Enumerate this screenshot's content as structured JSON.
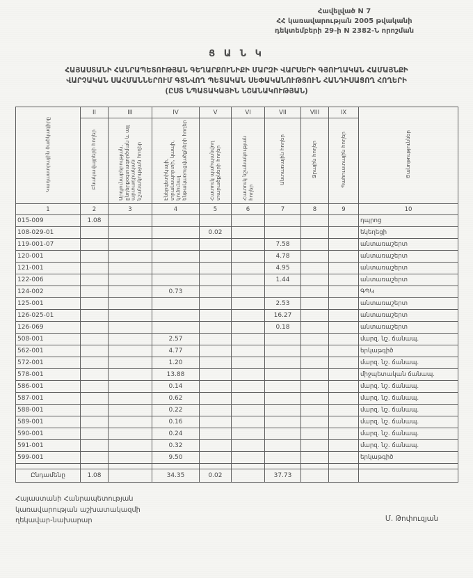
{
  "annex": {
    "line1": "Հավելված N 7",
    "line2": "ՀՀ կառավարության 2005 թվականի",
    "line3": "դեկտեմբերի 29-ի N 2382-Ն որոշման"
  },
  "title": {
    "heading": "Ց Ա Ն Կ",
    "line1": "ՀԱՅԱՍՏԱՆԻ ՀԱՆՐԱՊԵՏՈՒԹՅԱՆ ԳԵՂԱՐՔՈՒՆԻՔԻ ՄԱՐԶԻ ՎԱՐՍԵՐԻ ԳՅՈՒՂԱԿԱՆ ՀԱՄԱՅՆՔԻ",
    "line2": "ՎԱՐՉԱԿԱՆ ՍԱՀՄԱՆՆԵՐՈՒՄ ԳՏՆՎՈՂ ՊԵՏԱԿԱՆ ՍԵՓԱԿԱՆՈՒԹՅՈՒՆ ՀԱՆԴԻՍԱՑՈՂ ՀՈՂԵՐԻ",
    "line3": "(ԸՍՏ ՆՊԱՏԱԿԱՅԻՆ ՆՇԱՆԱԿՈՒԹՅԱՆ)"
  },
  "table": {
    "columns": [
      {
        "num": "1",
        "roman": "",
        "label": "Կադաստրային ծածկագիրը"
      },
      {
        "num": "2",
        "roman": "II",
        "label": "Բնակավայրերի հողեր"
      },
      {
        "num": "3",
        "roman": "III",
        "label": "Արդյունաբերության, ընդերքօգտագործման և այլ արտադրական նշանակության հողեր"
      },
      {
        "num": "4",
        "roman": "IV",
        "label": "Էներգետիկայի, տրանսպորտի, կապի, կոմունալ ենթակառուցվածքների հողեր"
      },
      {
        "num": "5",
        "roman": "V",
        "label": "Հատուկ պահպանվող տարածքների հողեր"
      },
      {
        "num": "6",
        "roman": "VI",
        "label": "Հատուկ նշանակության հողեր"
      },
      {
        "num": "7",
        "roman": "VII",
        "label": "Անտառային հողեր"
      },
      {
        "num": "8",
        "roman": "VIII",
        "label": "Ջրային հողեր"
      },
      {
        "num": "9",
        "roman": "IX",
        "label": "Պահուստային հողեր"
      },
      {
        "num": "10",
        "roman": "",
        "label": "Ծանոթություններ"
      }
    ],
    "rows": [
      {
        "code": "015-009",
        "v": [
          "1.08",
          "",
          "",
          "",
          "",
          "",
          "",
          ""
        ],
        "note": "դպրոց"
      },
      {
        "code": "108-029-01",
        "v": [
          "",
          "",
          "",
          "0.02",
          "",
          "",
          "",
          ""
        ],
        "note": "եկեղեցի"
      },
      {
        "code": "119-001-07",
        "v": [
          "",
          "",
          "",
          "",
          "",
          "7.58",
          "",
          ""
        ],
        "note": "անտառաշերտ"
      },
      {
        "code": "120-001",
        "v": [
          "",
          "",
          "",
          "",
          "",
          "4.78",
          "",
          ""
        ],
        "note": "անտառաշերտ"
      },
      {
        "code": "121-001",
        "v": [
          "",
          "",
          "",
          "",
          "",
          "4.95",
          "",
          ""
        ],
        "note": "անտառաշերտ"
      },
      {
        "code": "122-006",
        "v": [
          "",
          "",
          "",
          "",
          "",
          "1.44",
          "",
          ""
        ],
        "note": "անտառաշերտ"
      },
      {
        "code": "124-002",
        "v": [
          "",
          "",
          "0.73",
          "",
          "",
          "",
          "",
          ""
        ],
        "note": "ԳՊԿ"
      },
      {
        "code": "125-001",
        "v": [
          "",
          "",
          "",
          "",
          "",
          "2.53",
          "",
          ""
        ],
        "note": "անտառաշերտ"
      },
      {
        "code": "126-025-01",
        "v": [
          "",
          "",
          "",
          "",
          "",
          "16.27",
          "",
          ""
        ],
        "note": "անտառաշերտ"
      },
      {
        "code": "126-069",
        "v": [
          "",
          "",
          "",
          "",
          "",
          "0.18",
          "",
          ""
        ],
        "note": "անտառաշերտ"
      },
      {
        "code": "508-001",
        "v": [
          "",
          "",
          "2.57",
          "",
          "",
          "",
          "",
          ""
        ],
        "note": "մարզ. նշ. ճանապ."
      },
      {
        "code": "562-001",
        "v": [
          "",
          "",
          "4.77",
          "",
          "",
          "",
          "",
          ""
        ],
        "note": "երկաթգիծ"
      },
      {
        "code": "572-001",
        "v": [
          "",
          "",
          "1.20",
          "",
          "",
          "",
          "",
          ""
        ],
        "note": "մարզ. նշ. ճանապ."
      },
      {
        "code": "578-001",
        "v": [
          "",
          "",
          "13.88",
          "",
          "",
          "",
          "",
          ""
        ],
        "note": "միջպետական ճանապ."
      },
      {
        "code": "586-001",
        "v": [
          "",
          "",
          "0.14",
          "",
          "",
          "",
          "",
          ""
        ],
        "note": "մարզ. նշ. ճանապ."
      },
      {
        "code": "587-001",
        "v": [
          "",
          "",
          "0.62",
          "",
          "",
          "",
          "",
          ""
        ],
        "note": "մարզ. նշ. ճանապ."
      },
      {
        "code": "588-001",
        "v": [
          "",
          "",
          "0.22",
          "",
          "",
          "",
          "",
          ""
        ],
        "note": "մարզ. նշ. ճանապ."
      },
      {
        "code": "589-001",
        "v": [
          "",
          "",
          "0.16",
          "",
          "",
          "",
          "",
          ""
        ],
        "note": "մարզ. նշ. ճանապ."
      },
      {
        "code": "590-001",
        "v": [
          "",
          "",
          "0.24",
          "",
          "",
          "",
          "",
          ""
        ],
        "note": "մարզ. նշ. ճանապ."
      },
      {
        "code": "591-001",
        "v": [
          "",
          "",
          "0.32",
          "",
          "",
          "",
          "",
          ""
        ],
        "note": "մարզ. նշ. ճանապ."
      },
      {
        "code": "599-001",
        "v": [
          "",
          "",
          "9.50",
          "",
          "",
          "",
          "",
          ""
        ],
        "note": "երկաթգիծ"
      }
    ],
    "total": {
      "label": "Ընդամենը",
      "v": [
        "1.08",
        "",
        "34.35",
        "0.02",
        "",
        "37.73",
        "",
        ""
      ],
      "note": ""
    }
  },
  "footer": {
    "left1": "Հայաստանի Հանրապետության",
    "left2": "կառավարության աշխատակազմի",
    "left3": "ղեկավար-նախարար",
    "signature": "Մ. Թոփուզյան"
  }
}
